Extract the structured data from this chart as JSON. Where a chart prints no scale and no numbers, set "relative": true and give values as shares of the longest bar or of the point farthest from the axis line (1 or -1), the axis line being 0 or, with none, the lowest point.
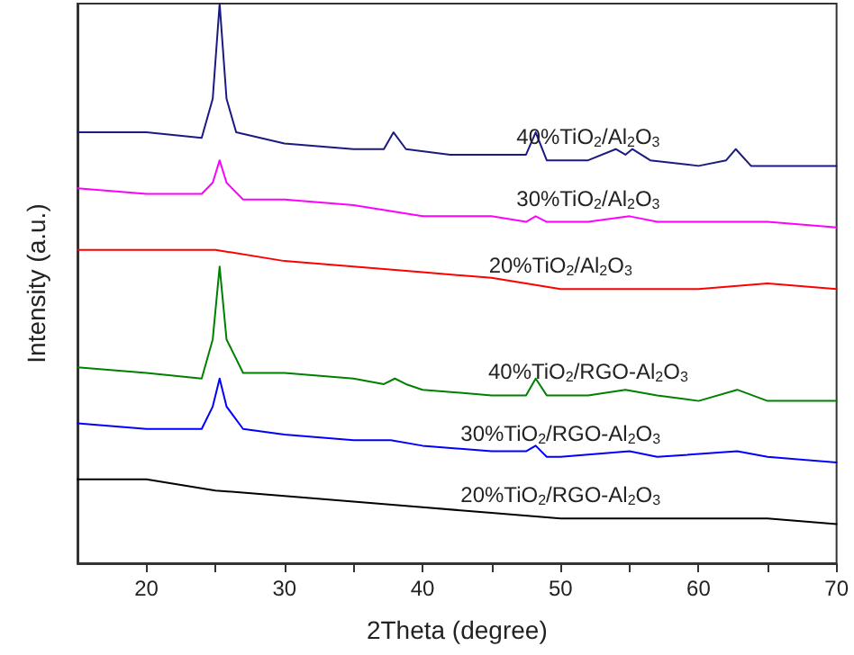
{
  "chart_data": {
    "type": "line",
    "relative": true,
    "xlabel": "2Theta (degree)",
    "ylabel": "Intensity (a.u.)",
    "xlim": [
      15,
      70
    ],
    "xticks": [
      20,
      {
        "value": 25,
        "label": null
      },
      30,
      {
        "value": 35,
        "label": null
      },
      40,
      {
        "value": 45,
        "label": null
      },
      50,
      {
        "value": 55,
        "label": null
      },
      60,
      {
        "value": 65,
        "label": null
      },
      70
    ],
    "grid": false,
    "legend": false,
    "marker": "none",
    "line_style": "solid",
    "series": [
      {
        "name": "40%TiO$_{2}$/Al$_{2}$O$_{3}$",
        "color": "#1a1a80",
        "x": [
          15,
          20,
          24,
          24.8,
          25.3,
          25.8,
          26.5,
          30,
          35,
          37.2,
          37.9,
          38.8,
          42,
          45,
          47.5,
          48.2,
          49,
          52,
          54,
          54.7,
          55.2,
          56.5,
          60,
          62,
          62.7,
          63.8,
          67,
          70
        ],
        "values": [
          0.77,
          0.77,
          0.76,
          0.83,
          1.0,
          0.83,
          0.77,
          0.75,
          0.74,
          0.74,
          0.77,
          0.74,
          0.73,
          0.73,
          0.73,
          0.77,
          0.72,
          0.72,
          0.74,
          0.73,
          0.74,
          0.72,
          0.71,
          0.72,
          0.74,
          0.71,
          0.71,
          0.71
        ]
      },
      {
        "name": "30%TiO$_{2}$/Al$_{2}$O$_{3}$",
        "color": "#ff00ff",
        "x": [
          15,
          20,
          24,
          24.8,
          25.3,
          25.8,
          27,
          30,
          35,
          40,
          45,
          47.5,
          48.2,
          49,
          52,
          55,
          57,
          62,
          65,
          70
        ],
        "values": [
          0.67,
          0.66,
          0.66,
          0.68,
          0.72,
          0.68,
          0.65,
          0.65,
          0.64,
          0.62,
          0.62,
          0.61,
          0.62,
          0.61,
          0.61,
          0.62,
          0.61,
          0.61,
          0.61,
          0.6
        ]
      },
      {
        "name": "20%TiO$_{2}$/Al$_{2}$O$_{3}$",
        "color": "#ff0000",
        "x": [
          15,
          25,
          30,
          35,
          40,
          45,
          50,
          55,
          60,
          65,
          70
        ],
        "values": [
          0.56,
          0.56,
          0.54,
          0.53,
          0.52,
          0.51,
          0.49,
          0.49,
          0.49,
          0.5,
          0.49
        ]
      },
      {
        "name": "40%TiO$_{2}$/RGO-Al$_{2}$O$_{3}$",
        "color": "#008000",
        "x": [
          15,
          20,
          24,
          24.8,
          25.3,
          25.8,
          27,
          30,
          35,
          37.2,
          38,
          38.8,
          40,
          45,
          47.5,
          48.2,
          49,
          52,
          54.7,
          57,
          60,
          62.8,
          65,
          70
        ],
        "values": [
          0.35,
          0.34,
          0.33,
          0.4,
          0.53,
          0.4,
          0.34,
          0.34,
          0.33,
          0.32,
          0.33,
          0.32,
          0.31,
          0.3,
          0.3,
          0.33,
          0.3,
          0.3,
          0.31,
          0.3,
          0.29,
          0.31,
          0.29,
          0.29
        ]
      },
      {
        "name": "30%TiO$_{2}$/RGO-Al$_{2}$O$_{3}$",
        "color": "#0000ff",
        "x": [
          15,
          20,
          24,
          24.8,
          25.3,
          25.8,
          27,
          30,
          35,
          37.7,
          40,
          45,
          47.5,
          48.2,
          49,
          50,
          55,
          57,
          62.8,
          65,
          70
        ],
        "values": [
          0.25,
          0.24,
          0.24,
          0.28,
          0.33,
          0.28,
          0.24,
          0.23,
          0.22,
          0.22,
          0.21,
          0.2,
          0.2,
          0.21,
          0.19,
          0.19,
          0.2,
          0.19,
          0.2,
          0.19,
          0.18
        ]
      },
      {
        "name": "20%TiO$_{2}$/RGO-Al$_{2}$O$_{3}$",
        "color": "#000000",
        "x": [
          15,
          20,
          25,
          30,
          35,
          40,
          45,
          50,
          55,
          60,
          65,
          70
        ],
        "values": [
          0.15,
          0.15,
          0.13,
          0.12,
          0.11,
          0.1,
          0.09,
          0.08,
          0.08,
          0.08,
          0.08,
          0.07
        ]
      }
    ]
  }
}
